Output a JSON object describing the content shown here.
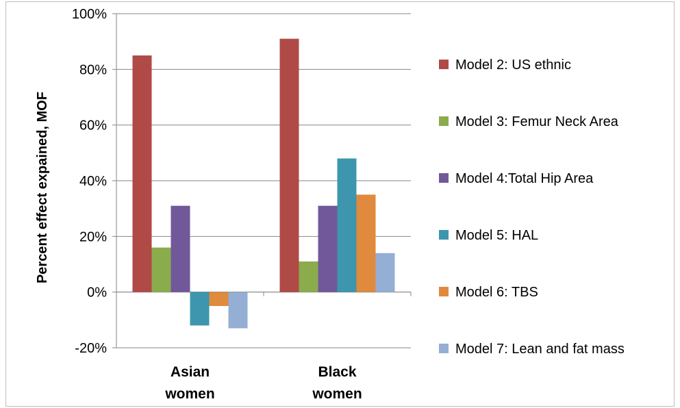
{
  "chart_data": {
    "type": "bar",
    "title": "",
    "xlabel": "",
    "ylabel": "Percent effect expained, MOF",
    "ylim": [
      -0.2,
      1.0
    ],
    "ytick_values": [
      -0.2,
      0,
      0.2,
      0.4,
      0.6,
      0.8,
      1.0
    ],
    "ytick_labels": [
      "-20%",
      "0%",
      "20%",
      "40%",
      "60%",
      "80%",
      "100%"
    ],
    "grid": true,
    "legend_position": "right",
    "categories": [
      [
        "Asian",
        "women"
      ],
      [
        "Black",
        "women"
      ]
    ],
    "series": [
      {
        "name": "Model 2: US ethnic",
        "color": "#b04a47",
        "values": [
          0.85,
          0.91
        ]
      },
      {
        "name": "Model 3:  Femur Neck Area",
        "color": "#8aac4d",
        "values": [
          0.16,
          0.11
        ]
      },
      {
        "name": "Model 4:Total Hip Area",
        "color": "#71589a",
        "values": [
          0.31,
          0.31
        ]
      },
      {
        "name": "Model 5: HAL",
        "color": "#3d96ae",
        "values": [
          -0.12,
          0.48
        ]
      },
      {
        "name": "Model 6: TBS",
        "color": "#e08a3e",
        "values": [
          -0.05,
          0.35
        ]
      },
      {
        "name": "Model 7: Lean and fat mass",
        "color": "#95aed3",
        "values": [
          -0.13,
          0.14
        ]
      }
    ]
  }
}
